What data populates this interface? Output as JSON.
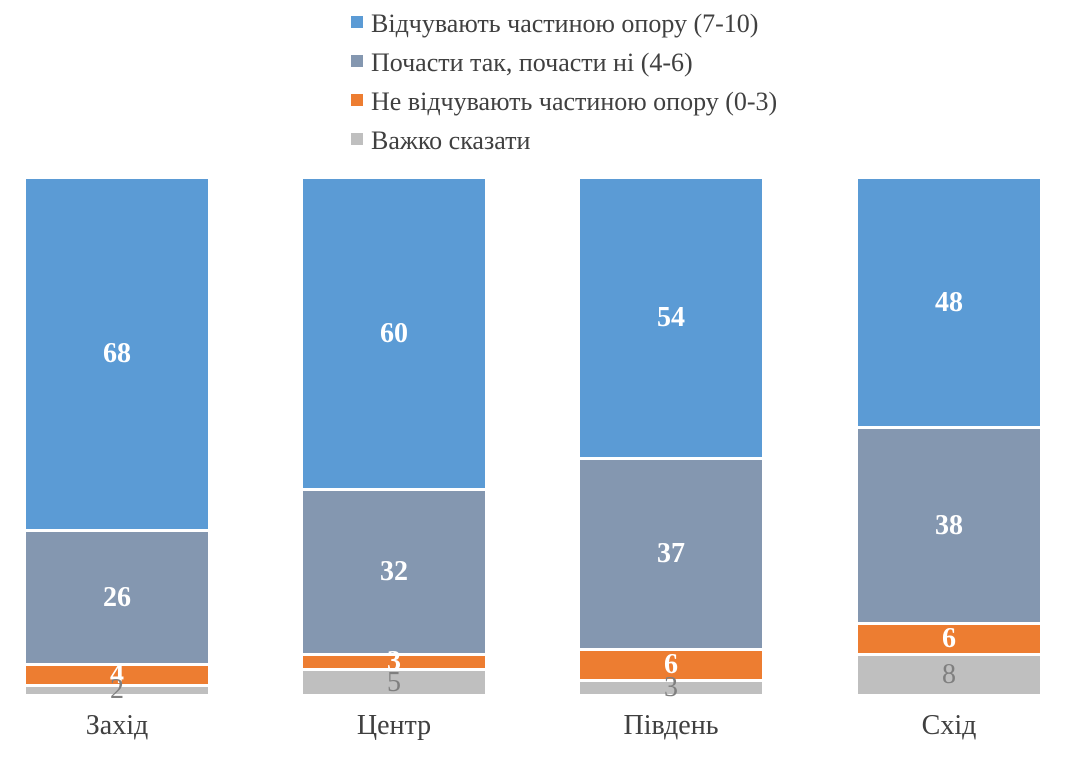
{
  "chart_data": {
    "type": "bar",
    "variant": "stacked-100-percent",
    "title": "",
    "xlabel": "",
    "ylabel": "",
    "ylim": [
      0,
      100
    ],
    "grid": false,
    "legend_position": "top",
    "categories": [
      "Захід",
      "Центр",
      "Південь",
      "Схід"
    ],
    "series": [
      {
        "name": "Відчувають частиною опору (7-10)",
        "color": "#5B9BD5",
        "label_color": "#FFFFFF",
        "label_bold": true,
        "values": [
          68,
          60,
          54,
          48
        ]
      },
      {
        "name": "Почасти так, почасти ні (4-6)",
        "color": "#8497B0",
        "label_color": "#FFFFFF",
        "label_bold": true,
        "values": [
          26,
          32,
          37,
          38
        ]
      },
      {
        "name": "Не відчувають частиною опору (0-3)",
        "color": "#ED7D31",
        "label_color": "#FFFFFF",
        "label_bold": true,
        "values": [
          4,
          3,
          6,
          6
        ]
      },
      {
        "name": "Важко сказати",
        "color": "#BFBFBF",
        "label_color": "#7F7F7F",
        "label_bold": false,
        "values": [
          2,
          5,
          3,
          8
        ]
      }
    ],
    "colors": {
      "background": "#FFFFFF",
      "legend_text": "#404040",
      "category_text": "#404040",
      "segment_separator": "#FFFFFF"
    }
  }
}
